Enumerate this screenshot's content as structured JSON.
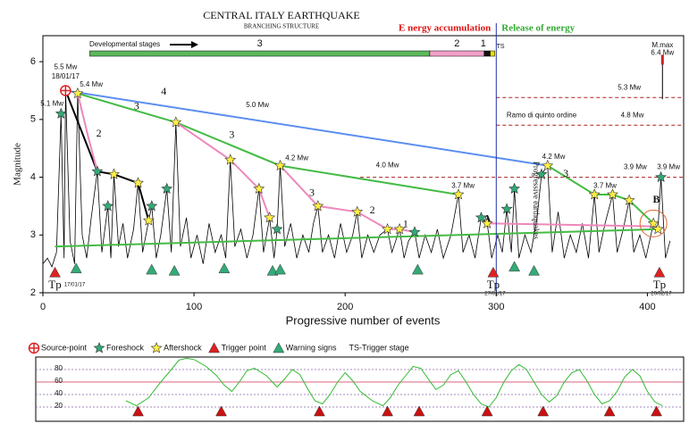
{
  "chart_data": [
    {
      "type": "line",
      "title": "CENTRAL ITALY EARTHQUAKE",
      "subtitle": "BRANCHING STRUCTURE",
      "x_label": "Progressive number of events",
      "y_label": "Magnitude",
      "xlim": [
        0,
        424
      ],
      "ylim": [
        2,
        6.45
      ],
      "xticks": [
        0,
        100,
        200,
        300,
        400
      ],
      "yticks": [
        2,
        3,
        4,
        5,
        6
      ],
      "events": {
        "color": "#000000",
        "x": [
          0,
          3,
          6,
          9,
          12,
          14,
          15,
          18,
          21,
          23,
          26,
          29,
          32,
          36,
          39,
          43,
          45,
          47,
          50,
          53,
          56,
          60,
          63,
          66,
          70,
          72,
          75,
          78,
          82,
          85,
          88,
          91,
          95,
          98,
          102,
          106,
          110,
          114,
          118,
          121,
          124,
          127,
          131,
          135,
          139,
          143,
          146,
          150,
          153,
          155,
          157,
          160,
          164,
          168,
          172,
          176,
          179,
          182,
          185,
          189,
          193,
          197,
          201,
          205,
          208,
          211,
          215,
          219,
          223,
          228,
          231,
          236,
          239,
          242,
          246,
          249,
          253,
          257,
          261,
          265,
          270,
          275,
          278,
          282,
          286,
          290,
          294,
          297,
          301,
          304,
          307,
          310,
          312,
          315,
          319,
          323,
          327,
          330,
          334,
          337,
          341,
          345,
          349,
          353,
          357,
          361,
          365,
          368,
          372,
          377,
          380,
          384,
          388,
          391,
          395,
          399,
          404,
          407,
          409,
          412,
          415
        ],
        "values": [
          2.5,
          2.6,
          2.45,
          2.7,
          5.1,
          2.6,
          5.5,
          2.9,
          2.5,
          5.45,
          3.0,
          2.6,
          3.3,
          4.1,
          2.7,
          3.5,
          2.6,
          4.05,
          2.8,
          3.2,
          2.6,
          3.1,
          3.9,
          2.7,
          3.25,
          3.5,
          2.6,
          3.0,
          3.8,
          2.7,
          4.95,
          2.8,
          3.3,
          2.6,
          3.0,
          2.5,
          3.2,
          2.7,
          3.0,
          2.6,
          4.3,
          2.8,
          3.1,
          2.6,
          3.0,
          3.8,
          2.7,
          3.3,
          2.6,
          3.1,
          4.2,
          2.8,
          3.2,
          2.6,
          3.0,
          2.7,
          3.2,
          3.5,
          2.7,
          3.0,
          2.6,
          3.2,
          2.7,
          3.0,
          3.4,
          2.6,
          3.0,
          2.7,
          3.0,
          3.1,
          2.7,
          3.1,
          2.6,
          2.9,
          3.05,
          2.6,
          3.0,
          2.7,
          3.1,
          2.6,
          3.0,
          3.7,
          2.7,
          3.0,
          2.6,
          3.3,
          3.2,
          2.6,
          3.0,
          2.7,
          3.45,
          2.7,
          3.8,
          2.6,
          3.0,
          2.7,
          3.3,
          4.05,
          4.2,
          2.7,
          3.4,
          2.6,
          3.0,
          2.7,
          3.2,
          2.6,
          3.7,
          2.7,
          3.2,
          3.7,
          2.7,
          3.1,
          3.6,
          2.7,
          3.0,
          2.6,
          3.2,
          3.1,
          4.0,
          2.6,
          2.9
        ]
      },
      "lines": [
        {
          "color": "#5b8ef0",
          "width": 2,
          "dash": false,
          "x": [
            15,
            334
          ],
          "values": [
            5.5,
            4.2
          ]
        },
        {
          "color": "#44bb44",
          "width": 2,
          "dash": false,
          "x": [
            23,
            88,
            157,
            275
          ],
          "values": [
            5.45,
            4.95,
            4.2,
            3.7
          ]
        },
        {
          "color": "#44bb44",
          "width": 2,
          "dash": false,
          "x": [
            334,
            365,
            377,
            388,
            404
          ],
          "values": [
            4.2,
            3.7,
            3.7,
            3.6,
            3.2
          ]
        },
        {
          "color": "#44bb44",
          "width": 2,
          "dash": false,
          "x": [
            8,
            408
          ],
          "values": [
            2.8,
            3.1
          ]
        },
        {
          "color": "#000000",
          "width": 2,
          "dash": false,
          "x": [
            15,
            36,
            47,
            63,
            70
          ],
          "values": [
            5.5,
            4.1,
            4.05,
            3.9,
            3.25
          ]
        },
        {
          "color": "#ee88bb",
          "width": 2,
          "dash": false,
          "x": [
            23,
            30,
            36
          ],
          "values": [
            5.45,
            4.7,
            4.1
          ]
        },
        {
          "color": "#ee88bb",
          "width": 2,
          "dash": false,
          "x": [
            88,
            124,
            143,
            150
          ],
          "values": [
            4.95,
            4.3,
            3.8,
            3.3
          ]
        },
        {
          "color": "#ee88bb",
          "width": 2,
          "dash": false,
          "x": [
            157,
            182,
            208,
            228,
            236,
            246
          ],
          "values": [
            4.2,
            3.5,
            3.4,
            3.1,
            3.1,
            3.05
          ]
        },
        {
          "color": "#ee88bb",
          "width": 2,
          "dash": false,
          "x": [
            294,
            404
          ],
          "values": [
            3.2,
            3.15
          ]
        },
        {
          "color": "#aa2222",
          "width": 1,
          "dash": true,
          "x": [
            300,
            424
          ],
          "values": [
            5.38,
            5.38
          ]
        },
        {
          "color": "#aa2222",
          "width": 1,
          "dash": true,
          "x": [
            300,
            424
          ],
          "values": [
            4.9,
            4.9
          ]
        },
        {
          "color": "#aa2222",
          "width": 1,
          "dash": true,
          "x": [
            210,
            424
          ],
          "values": [
            4.0,
            4.0
          ]
        },
        {
          "color": "#000000",
          "width": 1,
          "dash": false,
          "x": [
            410,
            410
          ],
          "values": [
            5.35,
            6.0
          ]
        }
      ],
      "markers": [
        {
          "name": "Source-point",
          "shape": "circle-plus",
          "color": "#dd2222",
          "x": [
            15
          ],
          "values": [
            5.5
          ]
        },
        {
          "name": "Foreshock",
          "shape": "star",
          "color": "#33aa77",
          "x": [
            12,
            36,
            43,
            72,
            82,
            155,
            246,
            290,
            307,
            312,
            330,
            409
          ],
          "values": [
            5.1,
            4.1,
            3.5,
            3.5,
            3.8,
            3.1,
            3.05,
            3.3,
            3.45,
            3.8,
            4.05,
            4.0
          ]
        },
        {
          "name": "Aftershock",
          "shape": "star",
          "color": "#ffee44",
          "x": [
            23,
            47,
            63,
            70,
            88,
            124,
            143,
            150,
            157,
            182,
            208,
            228,
            236,
            275,
            294,
            334,
            365,
            377,
            388,
            404,
            407
          ],
          "values": [
            5.45,
            4.05,
            3.9,
            3.25,
            4.95,
            4.3,
            3.8,
            3.3,
            4.2,
            3.5,
            3.4,
            3.1,
            3.1,
            3.7,
            3.2,
            4.2,
            3.7,
            3.7,
            3.6,
            3.2,
            3.1
          ]
        },
        {
          "name": "Trigger point",
          "shape": "triangle",
          "color": "#dd2222",
          "x": [
            8,
            298,
            408
          ],
          "values": [
            2.35,
            2.35,
            2.35
          ]
        },
        {
          "name": "Warning signs",
          "shape": "triangle",
          "color": "#33aa77",
          "x": [
            22,
            72,
            87,
            120,
            152,
            157,
            248,
            312,
            325
          ],
          "values": [
            2.42,
            2.4,
            2.38,
            2.42,
            2.38,
            2.4,
            2.4,
            2.45,
            2.38
          ]
        }
      ],
      "legend_note": "TS-Trigger stage",
      "tp": [
        {
          "label": "Tp",
          "date": "17/01/17"
        },
        {
          "label": "Tp",
          "date": "27/01/17"
        },
        {
          "label": "Tp",
          "date": "20/02/17"
        }
      ],
      "divider_x": 300,
      "energy_left": "E nergy accumulation",
      "energy_right": "Release of energy",
      "stages": {
        "label": "Developmental stages",
        "segments": [
          {
            "name": "3",
            "color": "#5cb85c",
            "x": [
              31,
              256
            ]
          },
          {
            "name": "2",
            "color": "#f2a0c8",
            "x": [
              256,
              292
            ]
          },
          {
            "name": "1",
            "color": "#111111",
            "x": [
              292,
              296
            ]
          },
          {
            "name": "TS",
            "color": "#e8e000",
            "x": [
              296,
              299
            ]
          }
        ]
      },
      "annotations": [
        "5.5 Mw",
        "18/01/17",
        "5.4 Mw",
        "5.1 Mw",
        "5.0 Mw",
        "4.2 Mw",
        "4.0 Mw",
        "3.7 Mw",
        "4.2 Mw",
        "3.7 Mw",
        "3.9 Mw",
        "3.9 Mw",
        "5.3 Mw",
        "4.8 Mw",
        "Ramo di quinto ordine",
        "M.max",
        "6.4 Mw",
        "A",
        "B",
        "4",
        "3",
        "2",
        "3",
        "3",
        "2",
        "1",
        "3",
        "Progressive earthquakes"
      ]
    },
    {
      "type": "line",
      "xlim": [
        0,
        424
      ],
      "ylim": [
        0,
        100
      ],
      "yticks": [
        20,
        40,
        60,
        80
      ],
      "color": "#33bb33",
      "x": [
        55,
        62,
        70,
        78,
        85,
        90,
        95,
        100,
        108,
        115,
        120,
        125,
        130,
        135,
        140,
        148,
        155,
        160,
        165,
        170,
        175,
        180,
        185,
        190,
        195,
        200,
        205,
        210,
        218,
        225,
        230,
        235,
        240,
        245,
        250,
        255,
        260,
        265,
        270,
        275,
        280,
        285,
        290,
        295,
        300,
        305,
        310,
        315,
        320,
        325,
        330,
        335,
        340,
        345,
        350,
        355,
        360,
        365,
        370,
        375,
        380,
        385,
        390,
        395,
        400,
        405,
        410
      ],
      "values": [
        30,
        22,
        35,
        60,
        80,
        95,
        98,
        96,
        85,
        70,
        55,
        45,
        60,
        78,
        82,
        70,
        52,
        65,
        80,
        72,
        50,
        30,
        25,
        40,
        60,
        75,
        62,
        45,
        30,
        22,
        35,
        55,
        70,
        85,
        82,
        65,
        48,
        55,
        72,
        78,
        60,
        40,
        25,
        20,
        35,
        60,
        78,
        88,
        80,
        60,
        40,
        28,
        38,
        60,
        75,
        80,
        62,
        40,
        25,
        30,
        45,
        68,
        80,
        70,
        45,
        28,
        22
      ],
      "triggers": {
        "color": "#cc1111",
        "x": [
          63,
          118,
          183,
          228,
          249,
          294,
          331,
          375,
          406
        ]
      }
    }
  ]
}
